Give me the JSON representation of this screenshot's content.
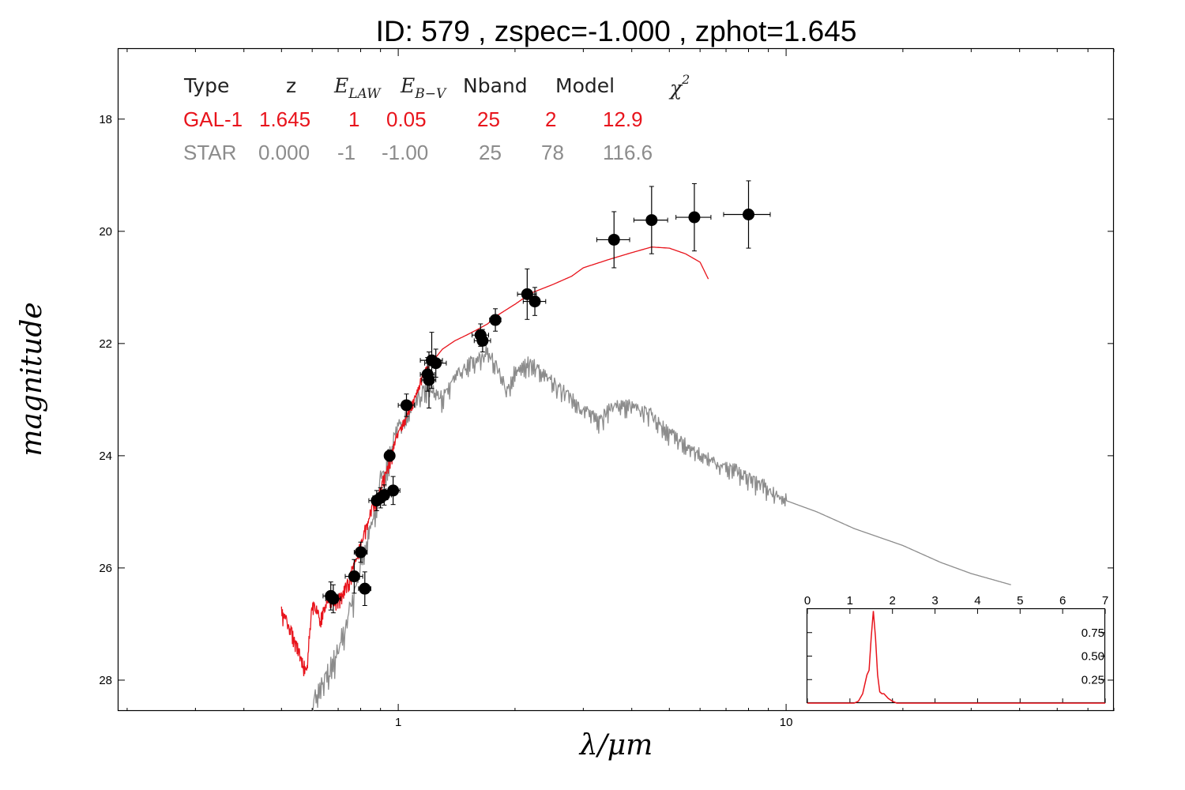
{
  "title": "ID:  579   , zspec=-1.000 , zphot=1.645",
  "colors": {
    "gal": "#e8141c",
    "star": "#8c8c8c",
    "points": "#000000"
  },
  "table": {
    "headers": {
      "type": "Type",
      "z": "z",
      "elaw_main": "E",
      "elaw_sub": "LAW",
      "ebv_main": "E",
      "ebv_sub": "B−V",
      "nband": "Nband",
      "model": "Model",
      "chi_main": "χ",
      "chi_sup": "2"
    },
    "rows": [
      {
        "type": "GAL-1",
        "z": "1.645",
        "elaw": "1",
        "ebv": "0.05",
        "nband": "25",
        "model": "2",
        "chi2": "12.9"
      },
      {
        "type": "STAR",
        "z": "0.000",
        "elaw": "-1",
        "ebv": "-1.00",
        "nband": "25",
        "model": "78",
        "chi2": "116.6"
      }
    ]
  },
  "chart_data": [
    {
      "type": "scatter",
      "xlabel": "λ/μm",
      "ylabel": "magnitude",
      "x_scale": "log",
      "xlim": [
        0.19,
        70
      ],
      "ylim": [
        28.55,
        16.75
      ],
      "x_ticks": [
        1,
        10
      ],
      "y_ticks": [
        18,
        20,
        22,
        24,
        26,
        28
      ],
      "grid": false,
      "points": [
        {
          "x": 0.67,
          "y": 26.5,
          "xerr": 0.03,
          "yerr": 0.25
        },
        {
          "x": 0.68,
          "y": 26.55,
          "xerr": 0.03,
          "yerr": 0.25
        },
        {
          "x": 0.77,
          "y": 26.15,
          "xerr": 0.04,
          "yerr": 0.3
        },
        {
          "x": 0.8,
          "y": 25.72,
          "xerr": 0.03,
          "yerr": 0.18
        },
        {
          "x": 0.82,
          "y": 26.37,
          "xerr": 0.03,
          "yerr": 0.3
        },
        {
          "x": 0.88,
          "y": 24.8,
          "xerr": 0.04,
          "yerr": 0.18
        },
        {
          "x": 0.9,
          "y": 24.75,
          "xerr": 0.04,
          "yerr": 0.18
        },
        {
          "x": 0.92,
          "y": 24.7,
          "xerr": 0.04,
          "yerr": 0.18
        },
        {
          "x": 0.95,
          "y": 24.0,
          "xerr": 0.02,
          "yerr": 0.1
        },
        {
          "x": 0.97,
          "y": 24.62,
          "xerr": 0.04,
          "yerr": 0.25
        },
        {
          "x": 1.05,
          "y": 23.1,
          "xerr": 0.05,
          "yerr": 0.2
        },
        {
          "x": 1.19,
          "y": 22.55,
          "xerr": 0.05,
          "yerr": 0.3
        },
        {
          "x": 1.2,
          "y": 22.65,
          "xerr": 0.05,
          "yerr": 0.5
        },
        {
          "x": 1.22,
          "y": 22.3,
          "xerr": 0.08,
          "yerr": 0.5
        },
        {
          "x": 1.25,
          "y": 22.35,
          "xerr": 0.08,
          "yerr": 0.25
        },
        {
          "x": 1.63,
          "y": 21.85,
          "xerr": 0.08,
          "yerr": 0.2
        },
        {
          "x": 1.65,
          "y": 21.95,
          "xerr": 0.08,
          "yerr": 0.2
        },
        {
          "x": 1.78,
          "y": 21.58,
          "xerr": 0.06,
          "yerr": 0.2
        },
        {
          "x": 2.15,
          "y": 21.12,
          "xerr": 0.12,
          "yerr": 0.45
        },
        {
          "x": 2.25,
          "y": 21.25,
          "xerr": 0.15,
          "yerr": 0.25
        },
        {
          "x": 3.6,
          "y": 20.15,
          "xerr": 0.35,
          "yerr": 0.5
        },
        {
          "x": 4.5,
          "y": 19.8,
          "xerr": 0.45,
          "yerr": 0.6
        },
        {
          "x": 5.8,
          "y": 19.75,
          "xerr": 0.6,
          "yerr": 0.6
        },
        {
          "x": 8.0,
          "y": 19.7,
          "xerr": 1.1,
          "yerr": 0.6
        }
      ],
      "series": [
        {
          "type": "line",
          "color": "#e8141c",
          "noise": 0.18,
          "noise_until": 1.2,
          "x": [
            0.5,
            0.52,
            0.55,
            0.58,
            0.6,
            0.63,
            0.66,
            0.7,
            0.75,
            0.8,
            0.85,
            0.9,
            0.95,
            1.0,
            1.05,
            1.1,
            1.15,
            1.2,
            1.3,
            1.4,
            1.5,
            1.6,
            1.7,
            1.8,
            2.0,
            2.2,
            2.5,
            2.8,
            3.0,
            3.5,
            4.0,
            4.5,
            5.0,
            5.5,
            6.0,
            6.3
          ],
          "y": [
            26.8,
            27.0,
            27.4,
            27.9,
            26.6,
            26.9,
            26.6,
            26.6,
            26.2,
            25.6,
            25.0,
            24.6,
            24.1,
            23.6,
            23.3,
            23.0,
            22.6,
            22.4,
            22.1,
            21.95,
            21.85,
            21.75,
            21.65,
            21.5,
            21.3,
            21.1,
            20.95,
            20.8,
            20.65,
            20.5,
            20.38,
            20.28,
            20.3,
            20.4,
            20.55,
            20.85
          ]
        },
        {
          "type": "line",
          "color": "#8c8c8c",
          "noise": 0.35,
          "noise_until": 10,
          "x": [
            0.6,
            0.65,
            0.7,
            0.75,
            0.8,
            0.85,
            0.9,
            0.95,
            1.0,
            1.1,
            1.2,
            1.3,
            1.4,
            1.5,
            1.6,
            1.7,
            1.8,
            1.9,
            2.0,
            2.1,
            2.2,
            2.3,
            2.5,
            2.7,
            3.0,
            3.3,
            3.6,
            4.0,
            4.5,
            5.0,
            5.5,
            6.0,
            7.0,
            8.0,
            9.0,
            10.0,
            12.0,
            15.0,
            20.0,
            25.0,
            30.0,
            38.0
          ],
          "y": [
            28.4,
            28.0,
            27.5,
            26.8,
            26.0,
            25.3,
            24.5,
            24.0,
            23.5,
            23.0,
            22.8,
            23.0,
            22.6,
            22.4,
            22.3,
            22.15,
            22.4,
            22.9,
            22.5,
            22.4,
            22.35,
            22.5,
            22.7,
            22.9,
            23.2,
            23.4,
            23.1,
            23.1,
            23.3,
            23.6,
            23.8,
            24.0,
            24.2,
            24.4,
            24.6,
            24.8,
            25.0,
            25.3,
            25.6,
            25.9,
            26.1,
            26.3
          ]
        }
      ]
    },
    {
      "type": "line",
      "description_free": true,
      "xlim": [
        0,
        7
      ],
      "ylim": [
        0,
        1.0
      ],
      "x_ticks": [
        0,
        1,
        2,
        3,
        4,
        5,
        6,
        7
      ],
      "y_ticks": [
        0.25,
        0.5,
        0.75
      ],
      "y_tick_labels": [
        "0.25",
        "0.50",
        "0.75"
      ],
      "series": [
        {
          "color": "#e8141c",
          "x": [
            0.0,
            1.0,
            1.1,
            1.2,
            1.3,
            1.4,
            1.45,
            1.5,
            1.55,
            1.6,
            1.65,
            1.7,
            1.75,
            1.8,
            1.9,
            2.0,
            2.1,
            2.2,
            3.0,
            7.0
          ],
          "y": [
            0.0,
            0.0,
            0.0,
            0.02,
            0.1,
            0.3,
            0.35,
            0.7,
            0.98,
            0.7,
            0.3,
            0.12,
            0.1,
            0.1,
            0.05,
            0.02,
            0.0,
            0.0,
            0.0,
            0.0
          ]
        }
      ]
    }
  ]
}
